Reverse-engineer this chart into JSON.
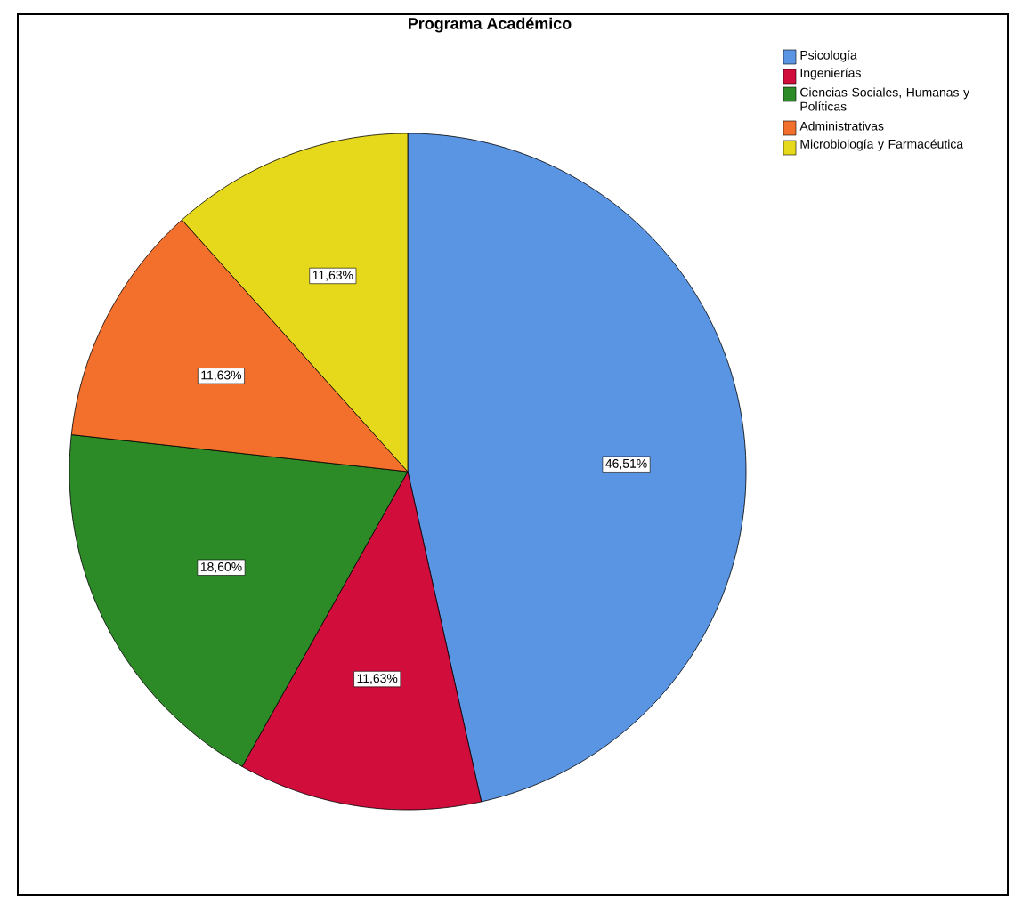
{
  "chart_data": {
    "type": "pie",
    "title": "Programa Académico",
    "categories": [
      "Psicología",
      "Ingenierías",
      "Ciencias Sociales, Humanas y Políticas",
      "Administrativas",
      "Microbiología y Farmacéutica"
    ],
    "values": [
      46.51,
      11.63,
      18.6,
      11.63,
      11.63
    ],
    "value_labels": [
      "46,51%",
      "11,63%",
      "18,60%",
      "11,63%",
      "11,63%"
    ],
    "colors": [
      "#5a95e3",
      "#d10d3c",
      "#2c8a27",
      "#f26f2c",
      "#e6d81b"
    ],
    "legend": "top right"
  }
}
